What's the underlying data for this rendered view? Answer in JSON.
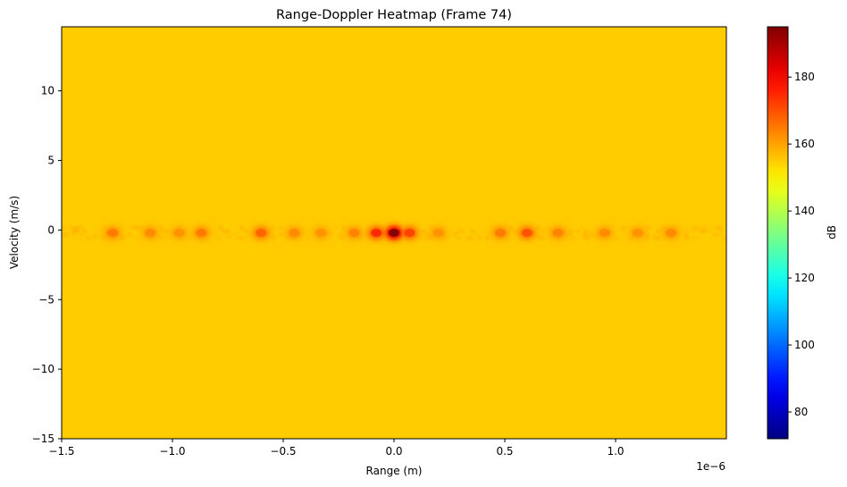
{
  "chart_data": {
    "type": "heatmap",
    "title": "Range-Doppler Heatmap (Frame 74)",
    "xlabel": "Range (m)",
    "ylabel": "Velocity (m/s)",
    "x_offset_label": "1e−6",
    "xlim": [
      -1.5e-06,
      1.5e-06
    ],
    "ylim": [
      -15,
      14.6
    ],
    "x_ticks": [
      -1.5e-06,
      -1e-06,
      -5e-07,
      0,
      5e-07,
      1e-06
    ],
    "x_tick_labels": [
      "−1.5",
      "−1.0",
      "−0.5",
      "0.0",
      "0.5",
      "1.0"
    ],
    "y_ticks": [
      -15,
      -10,
      -5,
      0,
      5,
      10
    ],
    "y_tick_labels": [
      "−15",
      "−10",
      "−5",
      "0",
      "5",
      "10"
    ],
    "colorbar": {
      "label": "dB",
      "colormap": "jet",
      "range": [
        72,
        195
      ],
      "ticks": [
        80,
        100,
        120,
        140,
        160,
        180
      ],
      "tick_labels": [
        "80",
        "100",
        "120",
        "140",
        "160",
        "180"
      ]
    },
    "background_level_db": 130,
    "background_spread_db": 9,
    "zero_doppler_band": {
      "velocity": -0.2,
      "half_width": 0.4,
      "level_db": 155
    },
    "peaks": [
      {
        "range": -1.27e-06,
        "velocity": -0.2,
        "db": 165
      },
      {
        "range": -1.1e-06,
        "velocity": -0.2,
        "db": 163
      },
      {
        "range": -9.7e-07,
        "velocity": -0.2,
        "db": 162
      },
      {
        "range": -8.7e-07,
        "velocity": -0.2,
        "db": 165
      },
      {
        "range": -6e-07,
        "velocity": -0.2,
        "db": 168
      },
      {
        "range": -4.5e-07,
        "velocity": -0.2,
        "db": 163
      },
      {
        "range": -3.3e-07,
        "velocity": -0.2,
        "db": 162
      },
      {
        "range": -1.8e-07,
        "velocity": -0.2,
        "db": 164
      },
      {
        "range": -8e-08,
        "velocity": -0.2,
        "db": 175
      },
      {
        "range": 0.0,
        "velocity": -0.2,
        "db": 195
      },
      {
        "range": 7e-08,
        "velocity": -0.2,
        "db": 172
      },
      {
        "range": 2e-07,
        "velocity": -0.2,
        "db": 162
      },
      {
        "range": 4.8e-07,
        "velocity": -0.2,
        "db": 165
      },
      {
        "range": 6e-07,
        "velocity": -0.2,
        "db": 170
      },
      {
        "range": 7.4e-07,
        "velocity": -0.2,
        "db": 164
      },
      {
        "range": 9.5e-07,
        "velocity": -0.2,
        "db": 163
      },
      {
        "range": 1.1e-06,
        "velocity": -0.2,
        "db": 162
      },
      {
        "range": 1.25e-06,
        "velocity": -0.2,
        "db": 163
      }
    ]
  }
}
